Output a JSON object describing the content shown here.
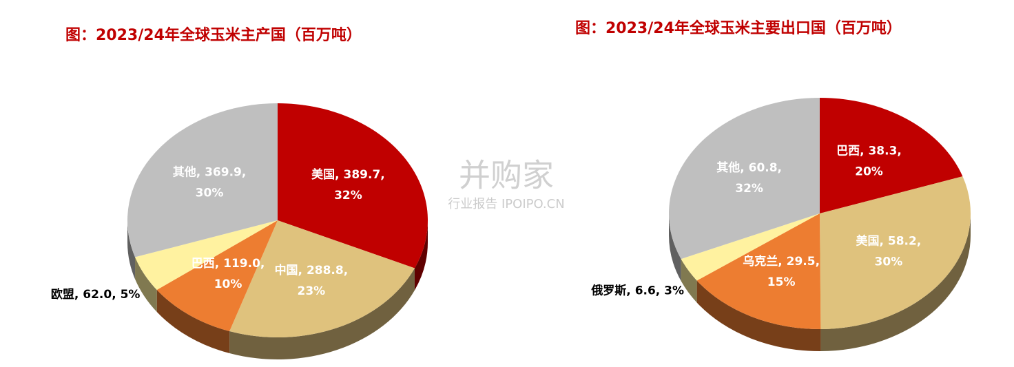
{
  "chart_data": [
    {
      "type": "pie",
      "title": "图：2023/24年全球玉米主产国（百万吨）",
      "values": [
        389.7,
        288.8,
        119.0,
        62.0,
        369.9
      ],
      "value_labels": [
        "美国, 389.7, 32%",
        "中国, 288.8, 23%",
        "巴西, 119.0, 10%",
        "欧盟, 62.0, 5%",
        "其他, 369.9, 30%"
      ],
      "colors": [
        "#c00000",
        "#dfc27d",
        "#ed7d31",
        "#fff2a0",
        "#bfbfbf"
      ]
    },
    {
      "type": "pie",
      "title": "图：2023/24年全球玉米主要出口国（百万吨）",
      "values": [
        38.3,
        58.2,
        29.5,
        6.6,
        60.8
      ],
      "value_labels": [
        "巴西, 38.3, 20%",
        "美国, 58.2, 30%",
        "乌克兰, 29.5, 15%",
        "俄罗斯, 6.6, 3%",
        "其他, 60.8, 32%"
      ],
      "colors": [
        "#c00000",
        "#dfc27d",
        "#ed7d31",
        "#fff2a0",
        "#bfbfbf"
      ]
    }
  ],
  "watermark": {
    "name": "并购家",
    "sub": "行业报告 IPOIPO.CN"
  }
}
